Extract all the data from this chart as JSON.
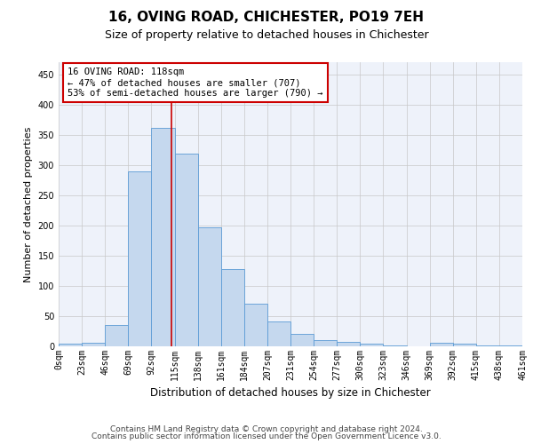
{
  "title": "16, OVING ROAD, CHICHESTER, PO19 7EH",
  "subtitle": "Size of property relative to detached houses in Chichester",
  "xlabel": "Distribution of detached houses by size in Chichester",
  "ylabel": "Number of detached properties",
  "bar_color": "#c5d8ee",
  "bar_edge_color": "#5b9bd5",
  "background_color": "#ffffff",
  "plot_bg_color": "#eef2fa",
  "grid_color": "#c8c8c8",
  "bin_labels": [
    "0sqm",
    "23sqm",
    "46sqm",
    "69sqm",
    "92sqm",
    "115sqm",
    "138sqm",
    "161sqm",
    "184sqm",
    "207sqm",
    "231sqm",
    "254sqm",
    "277sqm",
    "300sqm",
    "323sqm",
    "346sqm",
    "369sqm",
    "392sqm",
    "415sqm",
    "438sqm",
    "461sqm"
  ],
  "bar_heights": [
    4,
    6,
    35,
    290,
    362,
    318,
    197,
    128,
    70,
    41,
    20,
    10,
    7,
    5,
    2,
    0,
    6,
    5,
    1,
    2
  ],
  "ylim": [
    0,
    470
  ],
  "yticks": [
    0,
    50,
    100,
    150,
    200,
    250,
    300,
    350,
    400,
    450
  ],
  "vline_x": 4.87,
  "annotation_text": "16 OVING ROAD: 118sqm\n← 47% of detached houses are smaller (707)\n53% of semi-detached houses are larger (790) →",
  "annotation_box_color": "#ffffff",
  "annotation_box_edge": "#cc0000",
  "vline_color": "#cc0000",
  "footer_line1": "Contains HM Land Registry data © Crown copyright and database right 2024.",
  "footer_line2": "Contains public sector information licensed under the Open Government Licence v3.0.",
  "title_fontsize": 11,
  "subtitle_fontsize": 9,
  "xlabel_fontsize": 8.5,
  "ylabel_fontsize": 8,
  "tick_fontsize": 7,
  "annotation_fontsize": 7.5,
  "footer_fontsize": 6.5
}
